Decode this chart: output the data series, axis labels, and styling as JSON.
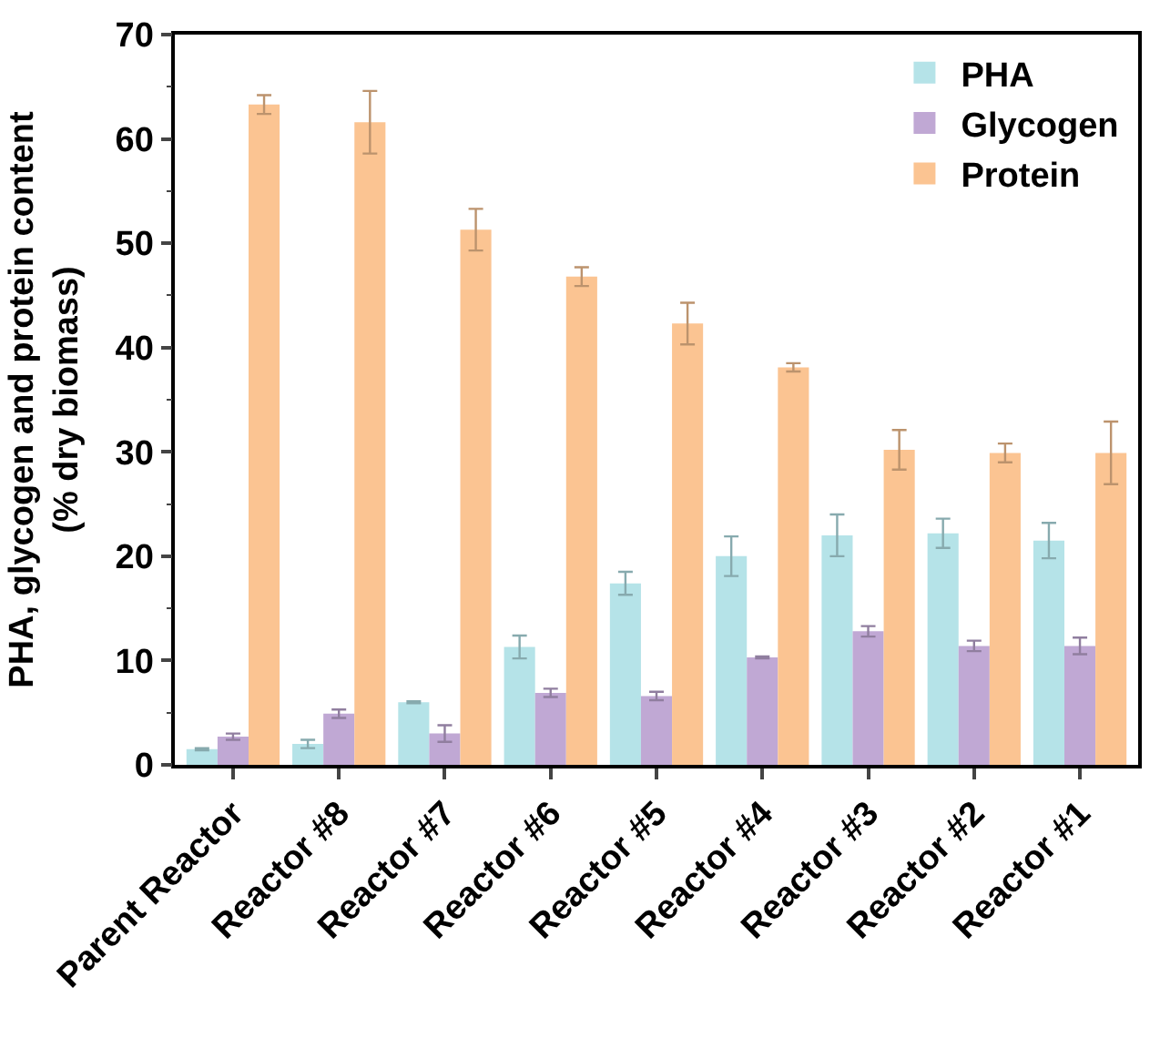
{
  "chart_data": {
    "type": "bar",
    "ylabel": "PHA, glycogen and protein content\n(% dry biomass)",
    "categories": [
      "Parent Reactor",
      "Reactor #8",
      "Reactor #7",
      "Reactor #6",
      "Reactor #5",
      "Reactor #4",
      "Reactor #3",
      "Reactor #2",
      "Reactor #1"
    ],
    "series": [
      {
        "name": "PHA",
        "color": "#b5e3e8",
        "values": [
          1.5,
          2.0,
          6.0,
          11.3,
          17.4,
          20.0,
          22.0,
          22.2,
          21.5
        ],
        "errors": [
          0.1,
          0.4,
          0.1,
          1.1,
          1.1,
          1.9,
          2.0,
          1.4,
          1.7
        ]
      },
      {
        "name": "Glycogen",
        "color": "#c0a8d4",
        "values": [
          2.7,
          4.9,
          3.0,
          6.9,
          6.6,
          10.3,
          12.8,
          11.4,
          11.4
        ],
        "errors": [
          0.3,
          0.4,
          0.8,
          0.4,
          0.4,
          0.1,
          0.5,
          0.5,
          0.8
        ]
      },
      {
        "name": "Protein",
        "color": "#fbc492",
        "values": [
          63.3,
          61.6,
          51.3,
          46.8,
          42.3,
          38.1,
          30.2,
          29.9,
          29.9
        ],
        "errors": [
          0.9,
          3.0,
          2.0,
          0.9,
          2.0,
          0.4,
          1.9,
          0.9,
          3.0
        ]
      }
    ],
    "ylim": [
      0,
      70
    ],
    "yticks": [
      0,
      10,
      20,
      30,
      40,
      50,
      60,
      70
    ],
    "legend": "top right"
  }
}
